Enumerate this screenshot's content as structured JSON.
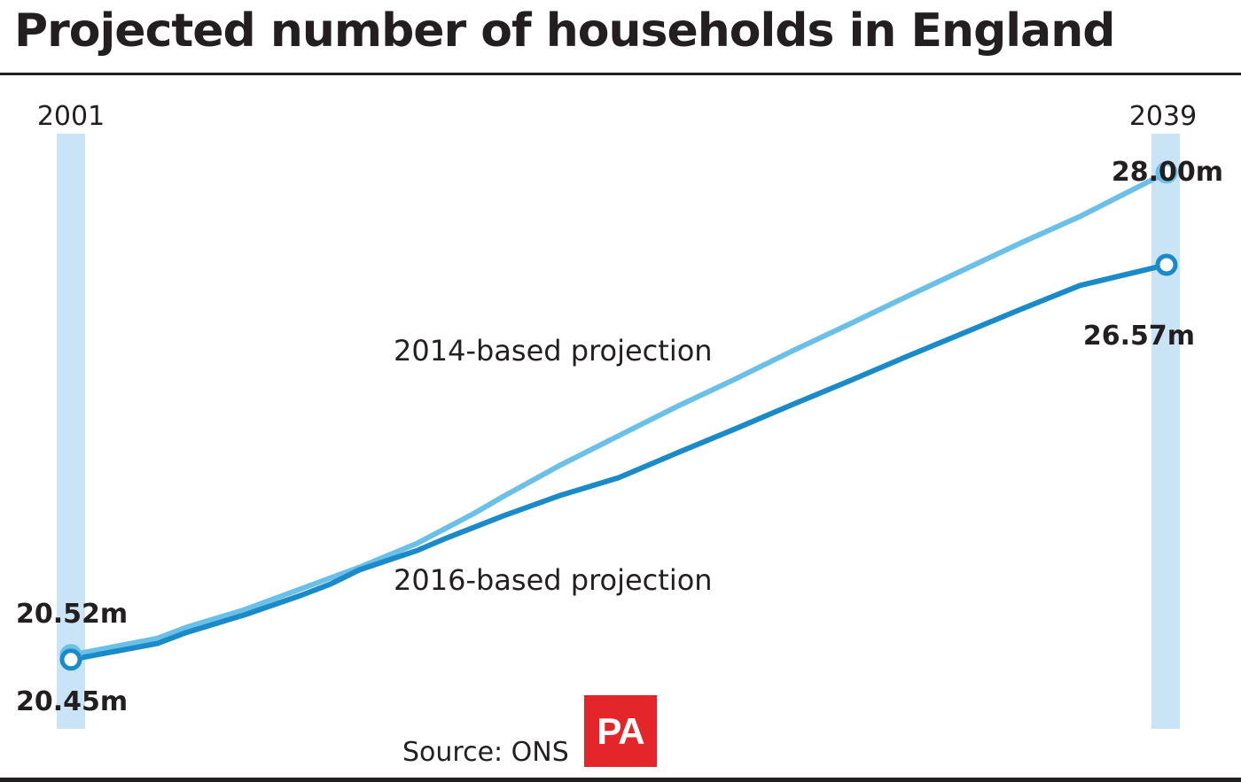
{
  "title": "Projected number of households in England",
  "source": "Source: ONS",
  "logo_text": "PA",
  "colors": {
    "series_2014": "#6bc0e8",
    "series_2016": "#1a8ac9",
    "year_band": "#c8e4f6",
    "logo": "#e4262a",
    "text": "#231f20"
  },
  "chart_data": {
    "type": "line",
    "title": "Projected number of households in England",
    "xlim": [
      2001,
      2039
    ],
    "ylim": [
      19.5,
      29.0
    ],
    "year_labels": [
      "2001",
      "2039"
    ],
    "series": [
      {
        "name": "2014-based projection",
        "x": [
          2001,
          2004,
          2005,
          2007,
          2009,
          2011,
          2013,
          2015,
          2016,
          2018,
          2020,
          2022,
          2024,
          2026,
          2028,
          2030,
          2032,
          2034,
          2036,
          2039
        ],
        "y": [
          20.52,
          20.78,
          20.95,
          21.22,
          21.55,
          21.88,
          22.25,
          22.72,
          22.98,
          23.47,
          23.92,
          24.37,
          24.79,
          25.23,
          25.65,
          26.08,
          26.5,
          26.92,
          27.32,
          28.0
        ],
        "start_label": "20.52m",
        "end_label": "28.00m"
      },
      {
        "name": "2016-based projection",
        "x": [
          2001,
          2004,
          2005,
          2007,
          2009,
          2010,
          2011,
          2013,
          2014,
          2016,
          2018,
          2020,
          2022,
          2024,
          2026,
          2028,
          2030,
          2032,
          2034,
          2036,
          2039
        ],
        "y": [
          20.45,
          20.7,
          20.87,
          21.14,
          21.45,
          21.62,
          21.84,
          22.14,
          22.33,
          22.68,
          23.0,
          23.27,
          23.65,
          24.02,
          24.4,
          24.77,
          25.15,
          25.52,
          25.89,
          26.25,
          26.57
        ],
        "start_label": "20.45m",
        "end_label": "26.57m"
      }
    ]
  }
}
